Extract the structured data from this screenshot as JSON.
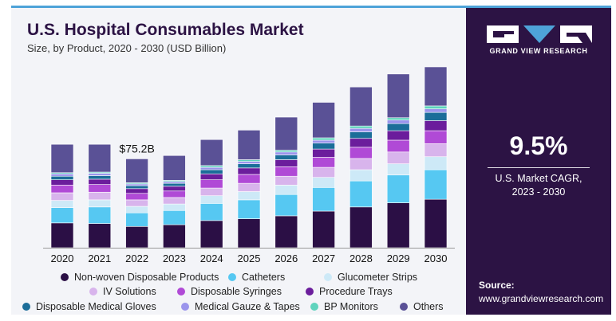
{
  "header": {
    "title": "U.S. Hospital Consumables Market",
    "subtitle": "Size, by Product, 2020 - 2030 (USD Billion)"
  },
  "sidebar": {
    "brand": "GRAND VIEW RESEARCH",
    "cagr_value": "9.5%",
    "cagr_label_line1": "U.S. Market CAGR,",
    "cagr_label_line2": "2023 - 2030",
    "source_label": "Source:",
    "source_url": "www.grandviewresearch.com"
  },
  "chart_data": {
    "type": "bar",
    "stacked": true,
    "categories": [
      "2020",
      "2021",
      "2022",
      "2023",
      "2024",
      "2025",
      "2026",
      "2027",
      "2028",
      "2029",
      "2030"
    ],
    "annotations": [
      {
        "category": "2022",
        "text": "$75.2B"
      }
    ],
    "ylim": [
      0,
      155
    ],
    "grid": false,
    "legend_position": "bottom",
    "series": [
      {
        "name": "Non-woven Disposable Products",
        "color": "#2b0f45",
        "values": [
          21.0,
          20.5,
          18.0,
          19.5,
          23.0,
          24.5,
          27.0,
          31.0,
          34.5,
          38.0,
          41.0
        ]
      },
      {
        "name": "Catheters",
        "color": "#56c8f2",
        "values": [
          13.0,
          14.0,
          11.5,
          12.0,
          14.5,
          16.0,
          18.0,
          20.0,
          22.0,
          23.5,
          25.0
        ]
      },
      {
        "name": "Glucometer Strips",
        "color": "#cde9f7",
        "values": [
          6.0,
          6.0,
          5.5,
          5.5,
          6.5,
          7.0,
          8.0,
          8.5,
          9.5,
          9.5,
          11.0
        ]
      },
      {
        "name": "IV Solutions",
        "color": "#d8b4ec",
        "values": [
          6.5,
          6.5,
          5.5,
          5.5,
          6.5,
          7.0,
          7.5,
          8.5,
          9.5,
          10.0,
          11.0
        ]
      },
      {
        "name": "Disposable Syringes",
        "color": "#b04ad6",
        "values": [
          6.5,
          6.5,
          5.5,
          5.5,
          7.0,
          7.5,
          8.0,
          8.5,
          9.5,
          10.0,
          11.0
        ]
      },
      {
        "name": "Procedure Trays",
        "color": "#6b1d9c",
        "values": [
          4.5,
          4.5,
          4.0,
          4.0,
          5.0,
          5.5,
          6.0,
          7.0,
          7.5,
          8.0,
          8.5
        ]
      },
      {
        "name": "Disposable Medical Gloves",
        "color": "#1b6d99",
        "values": [
          3.0,
          3.0,
          2.5,
          2.5,
          3.5,
          3.5,
          4.0,
          5.0,
          5.5,
          6.0,
          7.0
        ]
      },
      {
        "name": "Medical Gauze & Tapes",
        "color": "#9b95ec",
        "values": [
          2.0,
          2.0,
          1.5,
          1.5,
          2.0,
          2.0,
          2.5,
          2.5,
          3.0,
          3.0,
          3.0
        ]
      },
      {
        "name": "BP Monitors",
        "color": "#5fd3bd",
        "values": [
          1.0,
          1.0,
          1.0,
          1.0,
          1.5,
          1.5,
          1.5,
          2.0,
          2.0,
          2.0,
          2.5
        ]
      },
      {
        "name": "Others",
        "color": "#5a5196",
        "values": [
          24.0,
          23.5,
          20.2,
          21.0,
          22.0,
          25.0,
          28.0,
          30.0,
          33.0,
          37.0,
          33.0
        ]
      }
    ]
  }
}
